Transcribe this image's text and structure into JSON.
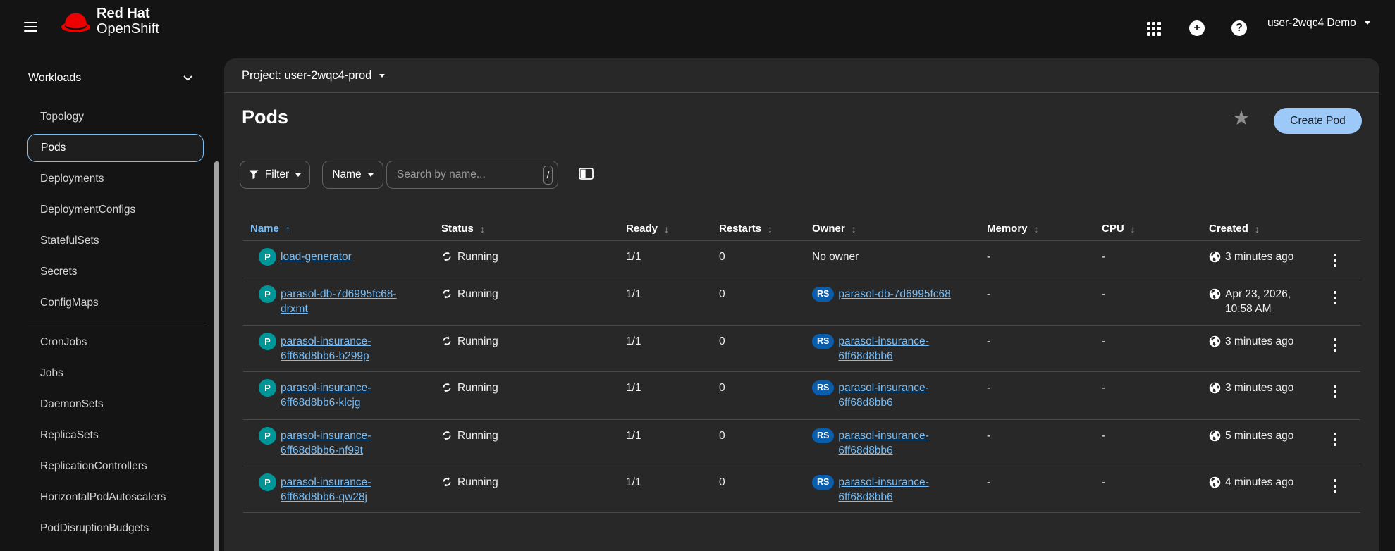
{
  "colors": {
    "page_bg": "#141414",
    "panel_bg": "#282828",
    "divider": "#4a4a4a",
    "accent_link": "#77bef8",
    "create_bg": "#9cc9f7",
    "pod_badge": "#009596",
    "rs_badge": "#0a5dab",
    "brand_red": "#ee0000",
    "star": "#8b8d8f",
    "text": "#f0f0f0",
    "muted": "#9b9b9b",
    "border_ui": "#626262"
  },
  "masthead": {
    "brand_line1": "Red Hat",
    "brand_line2": "OpenShift",
    "user_menu_label": "user-2wqc4 Demo"
  },
  "icons": {
    "add_glyph": "+",
    "help_glyph": "?",
    "star_glyph": "★"
  },
  "sidebar": {
    "section_label": "Workloads",
    "active_item": "Pods",
    "divider_after": 7,
    "items": [
      "Topology",
      "Pods",
      "Deployments",
      "DeploymentConfigs",
      "StatefulSets",
      "Secrets",
      "ConfigMaps",
      "CronJobs",
      "Jobs",
      "DaemonSets",
      "ReplicaSets",
      "ReplicationControllers",
      "HorizontalPodAutoscalers",
      "PodDisruptionBudgets"
    ]
  },
  "project_bar": {
    "label": "Project: user-2wqc4-prod"
  },
  "page": {
    "title": "Pods",
    "create_button_label": "Create Pod"
  },
  "toolbar": {
    "filter_label": "Filter",
    "attribute_label": "Name",
    "search_placeholder": "Search by name...",
    "shortcut_key": "/"
  },
  "table": {
    "columns": [
      {
        "label": "Name",
        "sort": "asc"
      },
      {
        "label": "Status",
        "sort": "both"
      },
      {
        "label": "Ready",
        "sort": "both"
      },
      {
        "label": "Restarts",
        "sort": "both"
      },
      {
        "label": "Owner",
        "sort": "both"
      },
      {
        "label": "Memory",
        "sort": "both"
      },
      {
        "label": "CPU",
        "sort": "both"
      },
      {
        "label": "Created",
        "sort": "both"
      }
    ],
    "rows": [
      {
        "badge": "P",
        "name_lines": [
          "load-generator"
        ],
        "status": "Running",
        "ready": "1/1",
        "restarts": "0",
        "owner_badge": null,
        "owner_lines": [
          "No owner"
        ],
        "memory": "-",
        "cpu": "-",
        "created_lines": [
          "3 minutes ago"
        ]
      },
      {
        "badge": "P",
        "name_lines": [
          "parasol-db-7d6995fc68-",
          "drxmt"
        ],
        "status": "Running",
        "ready": "1/1",
        "restarts": "0",
        "owner_badge": "RS",
        "owner_lines": [
          "parasol-db-7d6995fc68"
        ],
        "memory": "-",
        "cpu": "-",
        "created_lines": [
          "Apr 23, 2026,",
          "10:58 AM"
        ]
      },
      {
        "badge": "P",
        "name_lines": [
          "parasol-insurance-",
          "6ff68d8bb6-b299p"
        ],
        "status": "Running",
        "ready": "1/1",
        "restarts": "0",
        "owner_badge": "RS",
        "owner_lines": [
          "parasol-insurance-",
          "6ff68d8bb6"
        ],
        "memory": "-",
        "cpu": "-",
        "created_lines": [
          "3 minutes ago"
        ]
      },
      {
        "badge": "P",
        "name_lines": [
          "parasol-insurance-",
          "6ff68d8bb6-klcjg"
        ],
        "status": "Running",
        "ready": "1/1",
        "restarts": "0",
        "owner_badge": "RS",
        "owner_lines": [
          "parasol-insurance-",
          "6ff68d8bb6"
        ],
        "memory": "-",
        "cpu": "-",
        "created_lines": [
          "3 minutes ago"
        ]
      },
      {
        "badge": "P",
        "name_lines": [
          "parasol-insurance-",
          "6ff68d8bb6-nf99t"
        ],
        "status": "Running",
        "ready": "1/1",
        "restarts": "0",
        "owner_badge": "RS",
        "owner_lines": [
          "parasol-insurance-",
          "6ff68d8bb6"
        ],
        "memory": "-",
        "cpu": "-",
        "created_lines": [
          "5 minutes ago"
        ]
      },
      {
        "badge": "P",
        "name_lines": [
          "parasol-insurance-",
          "6ff68d8bb6-qw28j"
        ],
        "status": "Running",
        "ready": "1/1",
        "restarts": "0",
        "owner_badge": "RS",
        "owner_lines": [
          "parasol-insurance-",
          "6ff68d8bb6"
        ],
        "memory": "-",
        "cpu": "-",
        "created_lines": [
          "4 minutes ago"
        ]
      }
    ]
  }
}
